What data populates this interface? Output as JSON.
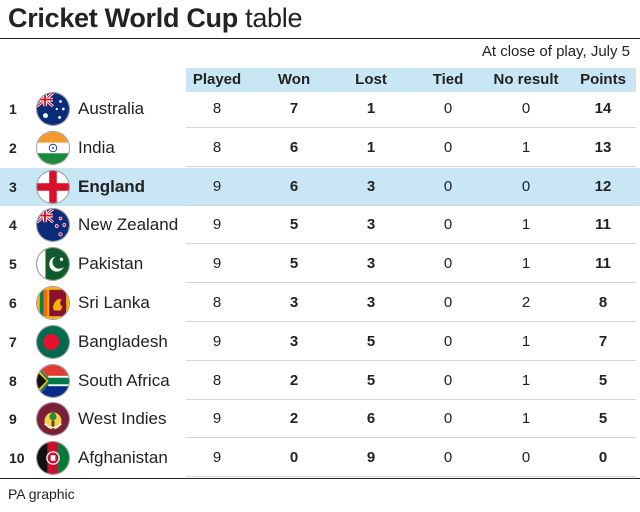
{
  "header": {
    "title_bold": "Cricket World Cup",
    "title_light": "table",
    "subtitle": "At close of play, July 5"
  },
  "columns": {
    "played": "Played",
    "won": "Won",
    "lost": "Lost",
    "tied": "Tied",
    "no_result": "No result",
    "points": "Points"
  },
  "footer": {
    "credit": "PA graphic"
  },
  "colors": {
    "header_bg": "#c8e6f4",
    "highlight_bg": "#c8e6f4"
  },
  "chart_data": {
    "type": "table",
    "title": "Cricket World Cup table",
    "subtitle": "At close of play, July 5",
    "columns": [
      "Played",
      "Won",
      "Lost",
      "Tied",
      "No result",
      "Points"
    ],
    "highlighted_team": "England",
    "rows": [
      {
        "rank": "1",
        "team": "Australia",
        "flag_icon": "australia-flag-icon",
        "played": "8",
        "won": "7",
        "lost": "1",
        "tied": "0",
        "no_result": "0",
        "points": "14"
      },
      {
        "rank": "2",
        "team": "India",
        "flag_icon": "india-flag-icon",
        "played": "8",
        "won": "6",
        "lost": "1",
        "tied": "0",
        "no_result": "1",
        "points": "13"
      },
      {
        "rank": "3",
        "team": "England",
        "flag_icon": "england-flag-icon",
        "played": "9",
        "won": "6",
        "lost": "3",
        "tied": "0",
        "no_result": "0",
        "points": "12"
      },
      {
        "rank": "4",
        "team": "New Zealand",
        "flag_icon": "new-zealand-flag-icon",
        "played": "9",
        "won": "5",
        "lost": "3",
        "tied": "0",
        "no_result": "1",
        "points": "11"
      },
      {
        "rank": "5",
        "team": "Pakistan",
        "flag_icon": "pakistan-flag-icon",
        "played": "9",
        "won": "5",
        "lost": "3",
        "tied": "0",
        "no_result": "1",
        "points": "11"
      },
      {
        "rank": "6",
        "team": "Sri Lanka",
        "flag_icon": "sri-lanka-flag-icon",
        "played": "8",
        "won": "3",
        "lost": "3",
        "tied": "0",
        "no_result": "2",
        "points": "8"
      },
      {
        "rank": "7",
        "team": "Bangladesh",
        "flag_icon": "bangladesh-flag-icon",
        "played": "9",
        "won": "3",
        "lost": "5",
        "tied": "0",
        "no_result": "1",
        "points": "7"
      },
      {
        "rank": "8",
        "team": "South Africa",
        "flag_icon": "south-africa-flag-icon",
        "played": "8",
        "won": "2",
        "lost": "5",
        "tied": "0",
        "no_result": "1",
        "points": "5"
      },
      {
        "rank": "9",
        "team": "West Indies",
        "flag_icon": "west-indies-flag-icon",
        "played": "9",
        "won": "2",
        "lost": "6",
        "tied": "0",
        "no_result": "1",
        "points": "5"
      },
      {
        "rank": "10",
        "team": "Afghanistan",
        "flag_icon": "afghanistan-flag-icon",
        "played": "9",
        "won": "0",
        "lost": "9",
        "tied": "0",
        "no_result": "0",
        "points": "0"
      }
    ]
  }
}
